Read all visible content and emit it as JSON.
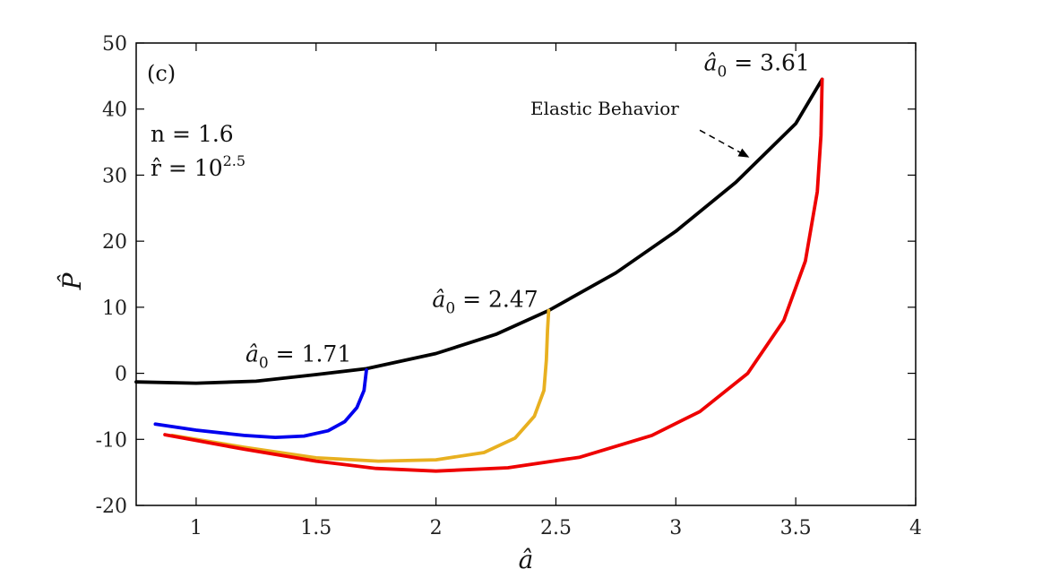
{
  "chart_data": {
    "type": "line",
    "panel_label": "(c)",
    "xlabel": "â",
    "ylabel": "P̂",
    "xlim": [
      0.75,
      4
    ],
    "ylim": [
      -20,
      50
    ],
    "x_ticks": [
      1,
      1.5,
      2,
      2.5,
      3,
      3.5,
      4
    ],
    "x_tick_labels": [
      "1",
      "1.5",
      "2",
      "2.5",
      "3",
      "3.5",
      "4"
    ],
    "y_ticks": [
      -20,
      -10,
      0,
      10,
      20,
      30,
      40,
      50
    ],
    "y_tick_labels": [
      "-20",
      "-10",
      "0",
      "10",
      "20",
      "30",
      "40",
      "50"
    ],
    "grid": false,
    "params": {
      "n_text": "n = 1.6",
      "r_text_base": "r̂ = 10",
      "r_text_exp": "2.5"
    },
    "series": [
      {
        "color": "#000000",
        "points": [
          [
            0.75,
            -1.3
          ],
          [
            1.0,
            -1.5
          ],
          [
            1.25,
            -1.2
          ],
          [
            1.5,
            -0.2
          ],
          [
            1.71,
            0.7
          ],
          [
            2.0,
            3.0
          ],
          [
            2.25,
            5.9
          ],
          [
            2.47,
            9.5
          ],
          [
            2.75,
            15.2
          ],
          [
            3.0,
            21.5
          ],
          [
            3.25,
            28.9
          ],
          [
            3.5,
            37.8
          ],
          [
            3.61,
            44.5
          ]
        ]
      },
      {
        "color": "#0000ee",
        "points": [
          [
            0.83,
            -7.7
          ],
          [
            1.0,
            -8.6
          ],
          [
            1.2,
            -9.4
          ],
          [
            1.33,
            -9.7
          ],
          [
            1.45,
            -9.5
          ],
          [
            1.55,
            -8.7
          ],
          [
            1.62,
            -7.3
          ],
          [
            1.67,
            -5.2
          ],
          [
            1.7,
            -2.6
          ],
          [
            1.71,
            0.5
          ]
        ]
      },
      {
        "color": "#e8b020",
        "points": [
          [
            0.9,
            -9.4
          ],
          [
            1.2,
            -11.2
          ],
          [
            1.5,
            -12.8
          ],
          [
            1.76,
            -13.3
          ],
          [
            2.0,
            -13.1
          ],
          [
            2.2,
            -12.0
          ],
          [
            2.33,
            -9.8
          ],
          [
            2.41,
            -6.5
          ],
          [
            2.45,
            -2.6
          ],
          [
            2.46,
            2.0
          ],
          [
            2.465,
            6.5
          ],
          [
            2.47,
            9.5
          ]
        ]
      },
      {
        "color": "#ee0000",
        "points": [
          [
            0.87,
            -9.3
          ],
          [
            1.2,
            -11.5
          ],
          [
            1.5,
            -13.3
          ],
          [
            1.75,
            -14.4
          ],
          [
            2.0,
            -14.8
          ],
          [
            2.3,
            -14.3
          ],
          [
            2.6,
            -12.7
          ],
          [
            2.9,
            -9.4
          ],
          [
            3.1,
            -5.8
          ],
          [
            3.3,
            0.0
          ],
          [
            3.45,
            8.0
          ],
          [
            3.54,
            17.0
          ],
          [
            3.59,
            27.5
          ],
          [
            3.605,
            36.0
          ],
          [
            3.61,
            44.5
          ]
        ]
      }
    ],
    "annotations": {
      "a1": {
        "value": "1.71",
        "x": 1.71,
        "y": 0.7
      },
      "a2": {
        "value": "2.47",
        "x": 2.47,
        "y": 9.5
      },
      "a3": {
        "value": "3.61",
        "x": 3.61,
        "y": 44.5
      },
      "elastic": {
        "text": "Elastic Behavior",
        "arrow_start": [
          3.1,
          36.8
        ],
        "arrow_end": [
          3.3,
          32.8
        ]
      }
    }
  }
}
